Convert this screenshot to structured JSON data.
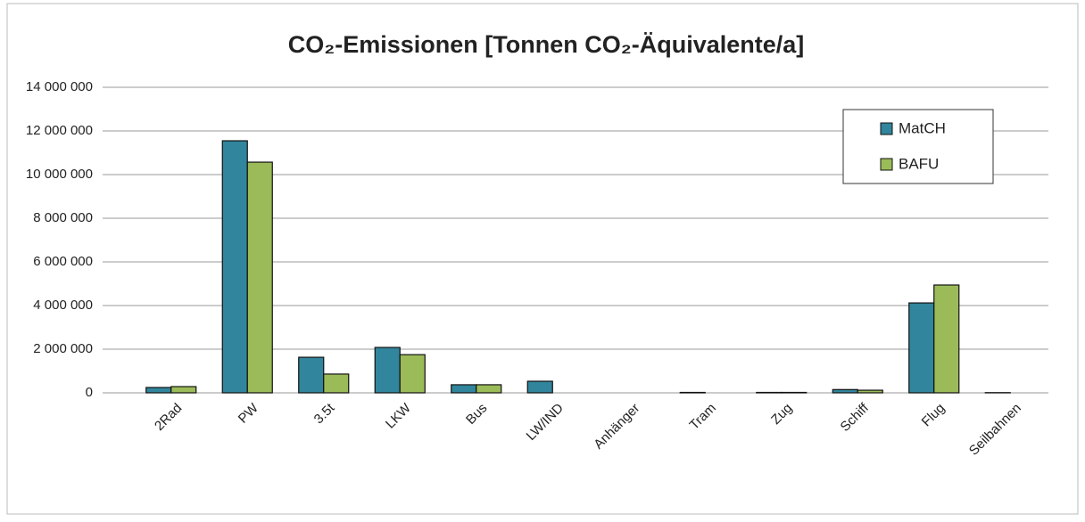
{
  "chart_data": {
    "type": "bar",
    "title": "CO₂-Emissionen [Tonnen CO₂-Äquivalente/a]",
    "categories": [
      "2Rad",
      "PW",
      "3.5t",
      "LKW",
      "Bus",
      "LW/IND",
      "Anhänger",
      "Tram",
      "Zug",
      "Schiff",
      "Flug",
      "Seilbahnen"
    ],
    "series": [
      {
        "name": "MatCH",
        "color": "#31859c",
        "values": [
          245000,
          11550000,
          1630000,
          2080000,
          370000,
          530000,
          0,
          20000,
          20000,
          150000,
          4120000,
          10000
        ]
      },
      {
        "name": "BAFU",
        "color": "#9bbb59",
        "values": [
          285000,
          10570000,
          860000,
          1750000,
          370000,
          0,
          0,
          0,
          20000,
          120000,
          4940000,
          0
        ]
      }
    ],
    "ylim": [
      0,
      14000000
    ],
    "yticks": [
      0,
      {
        "value": 2000000,
        "label": "2 000 000"
      },
      {
        "value": 4000000,
        "label": "4 000 000"
      },
      {
        "value": 6000000,
        "label": "6 000 000"
      },
      {
        "value": 8000000,
        "label": "8 000 000"
      },
      {
        "value": 10000000,
        "label": "10 000 000"
      },
      {
        "value": 12000000,
        "label": "12 000 000"
      },
      {
        "value": 14000000,
        "label": "14 000 000"
      }
    ],
    "grid": true,
    "legend": "top-right"
  }
}
